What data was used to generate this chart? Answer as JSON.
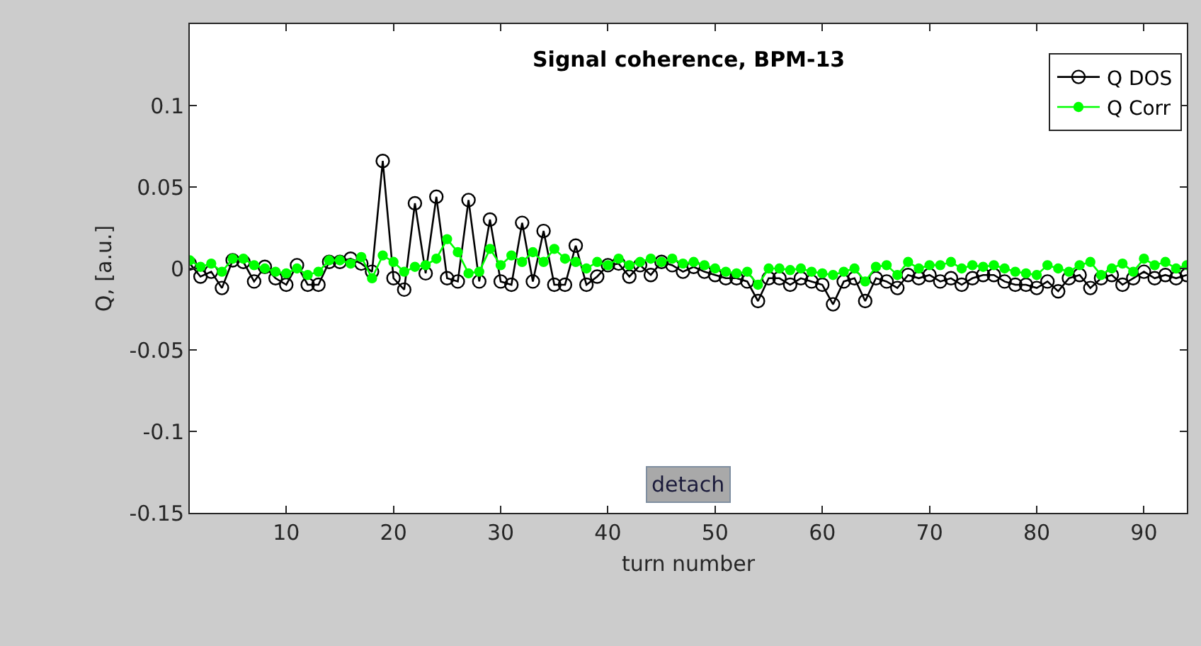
{
  "chart_data": {
    "type": "line",
    "title": "Signal coherence, BPM-13",
    "xlabel": "turn number",
    "ylabel": "Q, [a.u.]",
    "x": [
      1,
      2,
      3,
      4,
      5,
      6,
      7,
      8,
      9,
      10,
      11,
      12,
      13,
      14,
      15,
      16,
      17,
      18,
      19,
      20,
      21,
      22,
      23,
      24,
      25,
      26,
      27,
      28,
      29,
      30,
      31,
      32,
      33,
      34,
      35,
      36,
      37,
      38,
      39,
      40,
      41,
      42,
      43,
      44,
      45,
      46,
      47,
      48,
      49,
      50,
      51,
      52,
      53,
      54,
      55,
      56,
      57,
      58,
      59,
      60,
      61,
      62,
      63,
      64,
      65,
      66,
      67,
      68,
      69,
      70,
      71,
      72,
      73,
      74,
      75,
      76,
      77,
      78,
      79,
      80,
      81,
      82,
      83,
      84,
      85,
      86,
      87,
      88,
      89,
      90,
      91,
      92,
      93,
      94
    ],
    "series": [
      {
        "name": "Q DOS",
        "color": "#000000",
        "values": [
          0.003,
          -0.005,
          -0.002,
          -0.012,
          0.005,
          0.004,
          -0.008,
          0.001,
          -0.006,
          -0.01,
          0.002,
          -0.01,
          -0.01,
          0.004,
          0.004,
          0.006,
          0.003,
          -0.002,
          0.066,
          -0.006,
          -0.013,
          0.04,
          -0.003,
          0.044,
          -0.006,
          -0.008,
          0.042,
          -0.008,
          0.03,
          -0.008,
          -0.01,
          0.028,
          -0.008,
          0.023,
          -0.01,
          -0.01,
          0.014,
          -0.01,
          -0.005,
          0.002,
          0.003,
          -0.005,
          0.002,
          -0.004,
          0.004,
          0.002,
          -0.002,
          0.001,
          -0.002,
          -0.004,
          -0.006,
          -0.006,
          -0.008,
          -0.02,
          -0.006,
          -0.006,
          -0.01,
          -0.006,
          -0.008,
          -0.01,
          -0.022,
          -0.008,
          -0.006,
          -0.02,
          -0.006,
          -0.008,
          -0.012,
          -0.004,
          -0.006,
          -0.004,
          -0.008,
          -0.006,
          -0.01,
          -0.006,
          -0.004,
          -0.004,
          -0.008,
          -0.01,
          -0.01,
          -0.012,
          -0.008,
          -0.014,
          -0.006,
          -0.004,
          -0.012,
          -0.006,
          -0.004,
          -0.01,
          -0.006,
          -0.002,
          -0.006,
          -0.004,
          -0.006,
          -0.004
        ]
      },
      {
        "name": "Q Corr",
        "color": "#00ff00",
        "values": [
          0.005,
          0.001,
          0.003,
          -0.002,
          0.006,
          0.006,
          0.002,
          0.0,
          -0.002,
          -0.003,
          0.0,
          -0.004,
          -0.002,
          0.005,
          0.005,
          0.003,
          0.007,
          -0.006,
          0.008,
          0.004,
          -0.002,
          0.001,
          0.002,
          0.006,
          0.018,
          0.01,
          -0.003,
          -0.002,
          0.012,
          0.002,
          0.008,
          0.004,
          0.01,
          0.004,
          0.012,
          0.006,
          0.004,
          0.0,
          0.004,
          0.002,
          0.006,
          0.002,
          0.004,
          0.006,
          0.004,
          0.006,
          0.003,
          0.004,
          0.002,
          0.0,
          -0.002,
          -0.003,
          -0.002,
          -0.01,
          0.0,
          0.0,
          -0.001,
          0.0,
          -0.002,
          -0.003,
          -0.004,
          -0.002,
          0.0,
          -0.008,
          0.001,
          0.002,
          -0.004,
          0.004,
          0.0,
          0.002,
          0.002,
          0.004,
          0.0,
          0.002,
          0.001,
          0.002,
          0.0,
          -0.002,
          -0.003,
          -0.004,
          0.002,
          0.0,
          -0.002,
          0.002,
          0.004,
          -0.004,
          0.0,
          0.003,
          -0.002,
          0.006,
          0.002,
          0.004,
          0.0,
          0.002
        ]
      }
    ],
    "xlim": [
      1,
      94
    ],
    "ylim": [
      -0.15,
      0.15
    ],
    "xticks": [
      10,
      20,
      30,
      40,
      50,
      60,
      70,
      80,
      90
    ],
    "yticks": [
      -0.15,
      -0.1,
      -0.05,
      0,
      0.05,
      0.1
    ],
    "annotations": [
      "detach"
    ],
    "legend": "top right",
    "marker": "circle",
    "line_style": "solid"
  }
}
